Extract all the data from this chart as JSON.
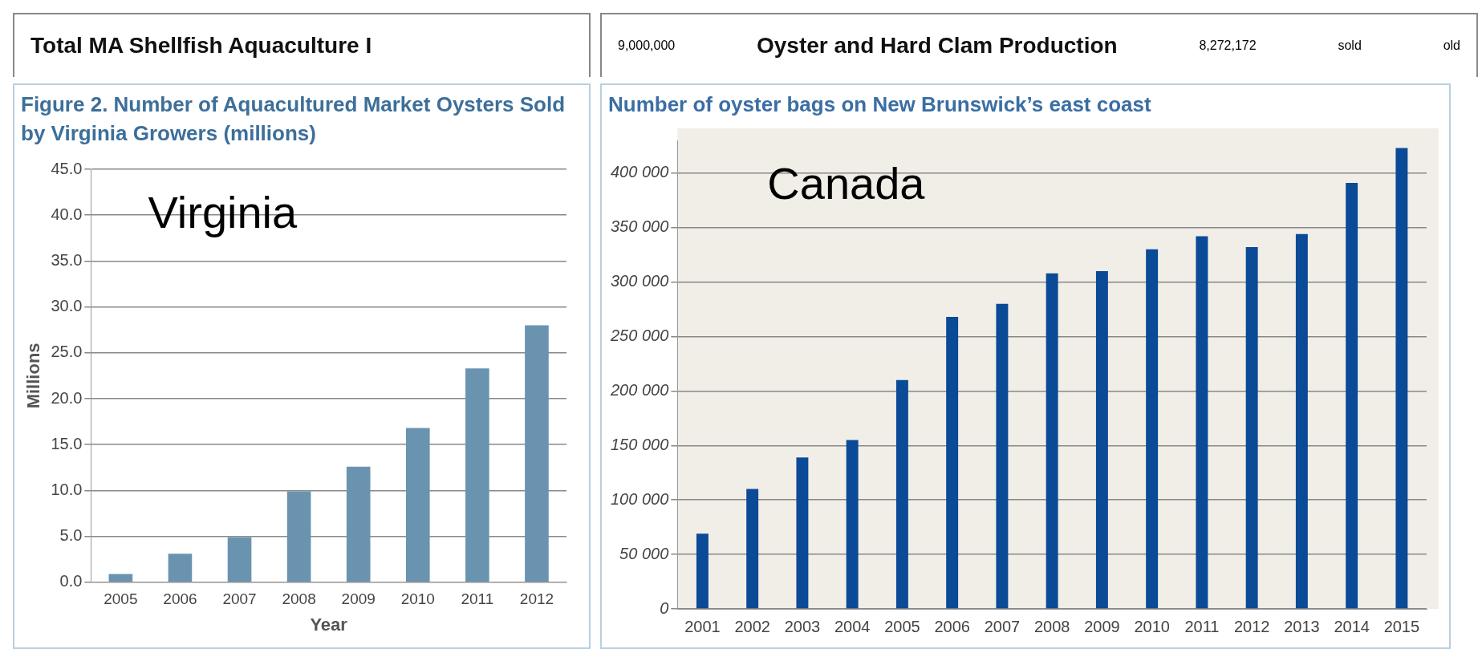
{
  "chart_data": [
    {
      "type": "other",
      "title": "Total MA Shellfish Aquaculture I"
    },
    {
      "type": "other",
      "title": "Oyster and Hard Clam Production",
      "annotations": [
        "9,000,000",
        "8,272,172",
        "sold",
        "old"
      ]
    },
    {
      "type": "bar",
      "title": "Figure 2. Number of Aquacultured Market Oysters Sold by Virginia Growers (millions)",
      "xlabel": "Year",
      "ylabel": "Millions",
      "categories": [
        "2005",
        "2006",
        "2007",
        "2008",
        "2009",
        "2010",
        "2011",
        "2012"
      ],
      "values": [
        0.9,
        3.1,
        4.9,
        9.9,
        12.6,
        16.8,
        23.3,
        28.0
      ],
      "color": "#6a93b0",
      "ylim": [
        0,
        45
      ],
      "yticks": [
        {
          "value": 0,
          "label": "0.0"
        },
        {
          "value": 5,
          "label": "5.0"
        },
        {
          "value": 10,
          "label": "10.0"
        },
        {
          "value": 15,
          "label": "15.0"
        },
        {
          "value": 20,
          "label": "20.0"
        },
        {
          "value": 25,
          "label": "25.0"
        },
        {
          "value": 30,
          "label": "30.0"
        },
        {
          "value": 35,
          "label": "35.0"
        },
        {
          "value": 40,
          "label": "40.0"
        },
        {
          "value": 45,
          "label": "45.0"
        }
      ],
      "grid": "y",
      "annotations": [
        "Virginia"
      ]
    },
    {
      "type": "bar",
      "title": "Number of oyster bags on New Brunswick’s east coast",
      "categories": [
        "2001",
        "2002",
        "2003",
        "2004",
        "2005",
        "2006",
        "2007",
        "2008",
        "2009",
        "2010",
        "2011",
        "2012",
        "2013",
        "2014",
        "2015"
      ],
      "values": [
        69000,
        110000,
        139000,
        155000,
        210000,
        268000,
        280000,
        308000,
        310000,
        330000,
        342000,
        332000,
        344000,
        391000,
        423000
      ],
      "color": "#0a4a96",
      "ylim": [
        0,
        430000
      ],
      "yticks": [
        0,
        {
          "value": 50000,
          "label": "50 000"
        },
        {
          "value": 100000,
          "label": "100 000"
        },
        {
          "value": 150000,
          "label": "150 000"
        },
        {
          "value": 200000,
          "label": "200 000"
        },
        {
          "value": 250000,
          "label": "250 000"
        },
        {
          "value": 300000,
          "label": "300 000"
        },
        {
          "value": 350000,
          "label": "350 000"
        },
        {
          "value": 400000,
          "label": "400 000"
        }
      ],
      "grid": "y",
      "annotations": [
        "Canada"
      ]
    }
  ]
}
